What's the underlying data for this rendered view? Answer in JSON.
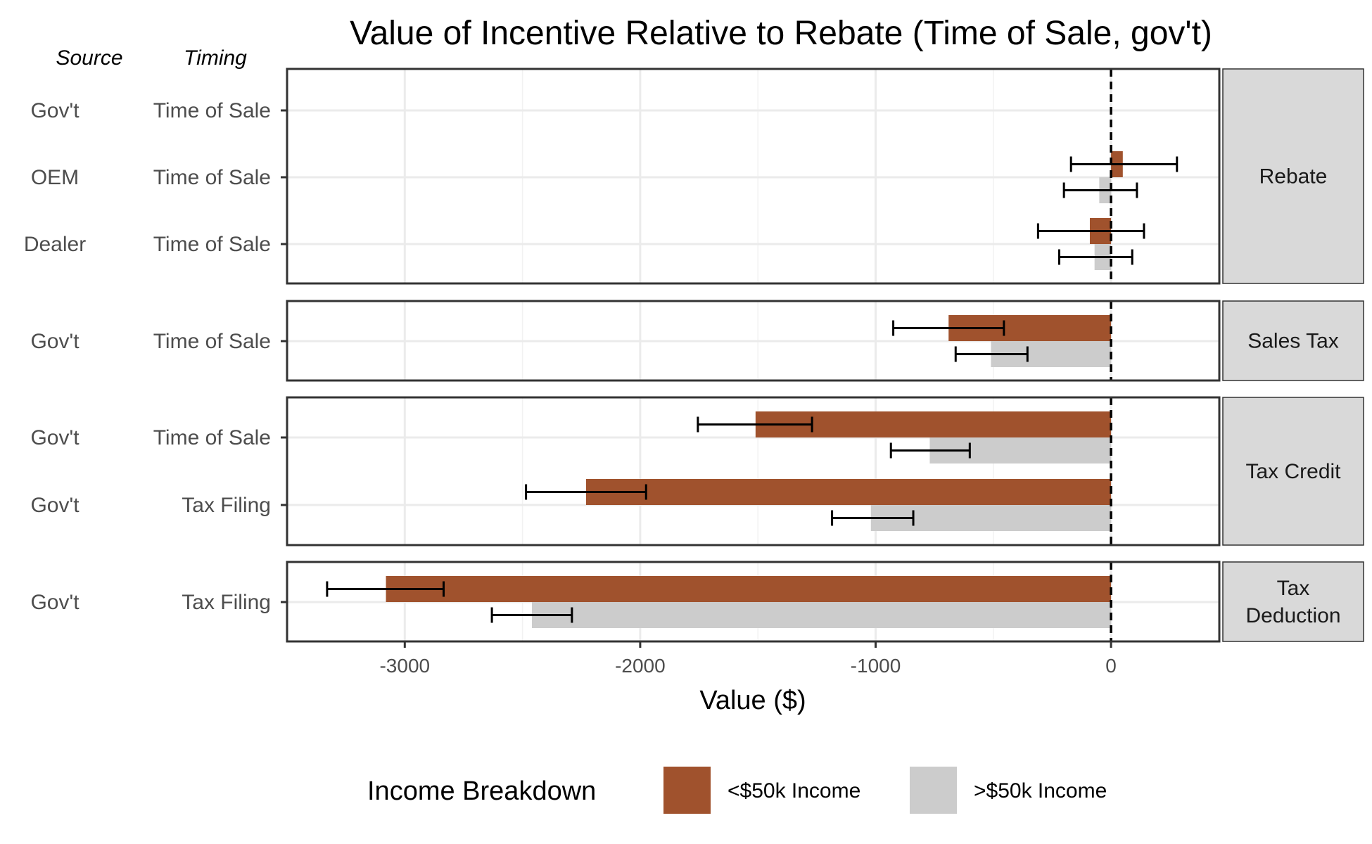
{
  "chart_data": {
    "type": "bar",
    "orientation": "horizontal",
    "title": "Value of Incentive Relative to Rebate (Time of Sale, gov't)",
    "xlabel": "Value ($)",
    "xlim": [
      -3500,
      460
    ],
    "x_ticks": [
      -3000,
      -2000,
      -1000,
      0
    ],
    "x_tick_labels": [
      "-3000",
      "-2000",
      "-1000",
      "0"
    ],
    "grid": true,
    "reference_line": {
      "x": 0,
      "style": "dashed"
    },
    "row_headers": {
      "source": "Source",
      "timing": "Timing"
    },
    "legend": {
      "title": "Income Breakdown",
      "position": "bottom",
      "entries": [
        {
          "label": "<$50k Income",
          "color": "#A0522D"
        },
        {
          "label": ">$50k Income",
          "color": "#CCCCCC"
        }
      ]
    },
    "panels": [
      {
        "label": "Rebate",
        "rows": [
          {
            "source": "Gov't",
            "timing": "Time of Sale",
            "low": null,
            "high": null
          },
          {
            "source": "OEM",
            "timing": "Time of Sale",
            "low": {
              "value": 50,
              "ci": [
                -170,
                280
              ]
            },
            "high": {
              "value": -50,
              "ci": [
                -200,
                110
              ]
            }
          },
          {
            "source": "Dealer",
            "timing": "Time of Sale",
            "low": {
              "value": -90,
              "ci": [
                -310,
                140
              ]
            },
            "high": {
              "value": -70,
              "ci": [
                -220,
                90
              ]
            }
          }
        ]
      },
      {
        "label": "Sales Tax",
        "rows": [
          {
            "source": "Gov't",
            "timing": "Time of Sale",
            "low": {
              "value": -690,
              "ci": [
                -925,
                -455
              ]
            },
            "high": {
              "value": -510,
              "ci": [
                -660,
                -355
              ]
            }
          }
        ]
      },
      {
        "label": "Tax Credit",
        "rows": [
          {
            "source": "Gov't",
            "timing": "Time of Sale",
            "low": {
              "value": -1510,
              "ci": [
                -1755,
                -1270
              ]
            },
            "high": {
              "value": -770,
              "ci": [
                -935,
                -600
              ]
            }
          },
          {
            "source": "Gov't",
            "timing": "Tax Filing",
            "low": {
              "value": -2230,
              "ci": [
                -2485,
                -1975
              ]
            },
            "high": {
              "value": -1020,
              "ci": [
                -1185,
                -840
              ]
            }
          }
        ]
      },
      {
        "label": "Tax Deduction",
        "label_lines": [
          "Tax",
          "Deduction"
        ],
        "rows": [
          {
            "source": "Gov't",
            "timing": "Tax Filing",
            "low": {
              "value": -3080,
              "ci": [
                -3330,
                -2835
              ]
            },
            "high": {
              "value": -2460,
              "ci": [
                -2630,
                -2290
              ]
            }
          }
        ]
      }
    ]
  }
}
